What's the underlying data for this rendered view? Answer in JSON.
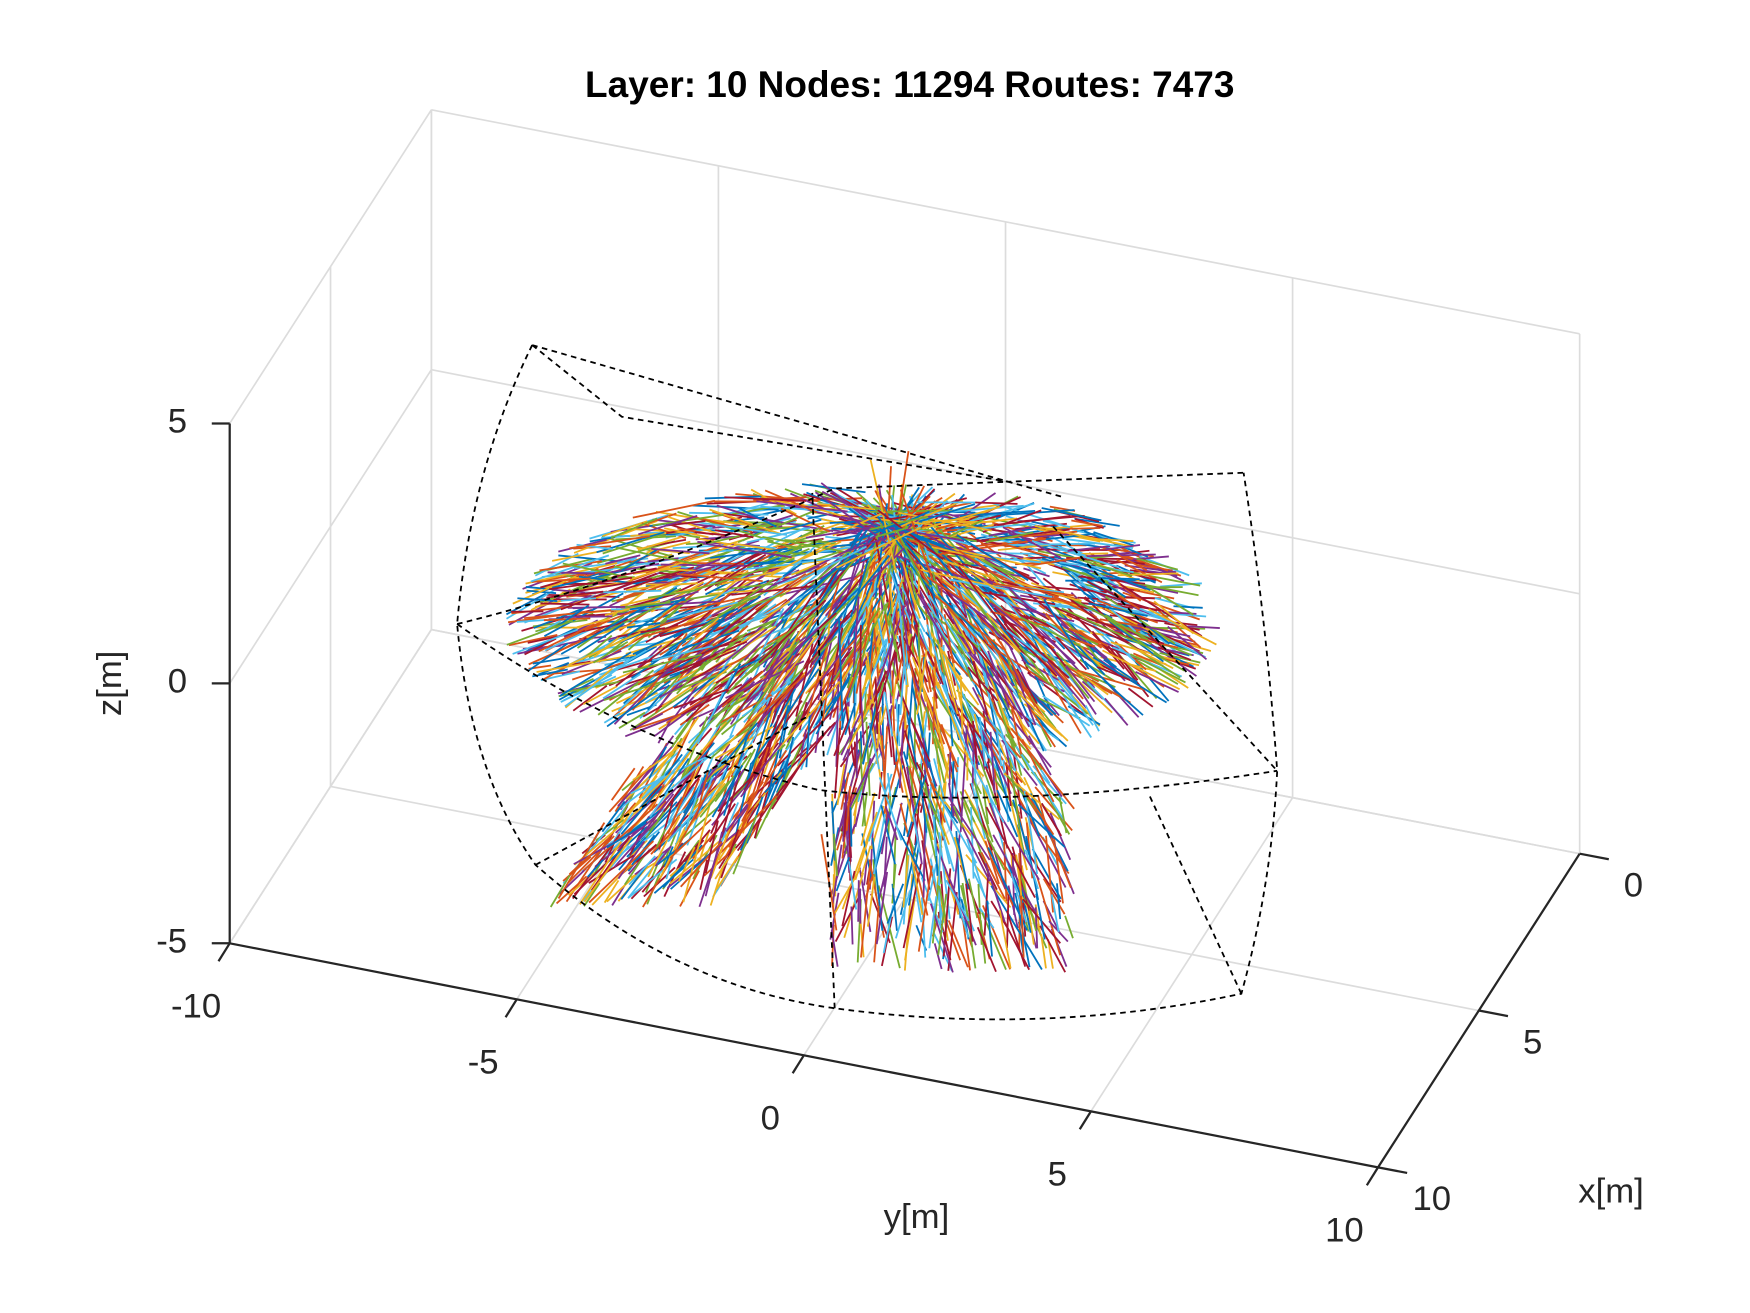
{
  "chart_data": {
    "type": "line3d",
    "title": "Layer: 10 Nodes: 11294 Routes: 7473",
    "xlabel": "x[m]",
    "ylabel": "y[m]",
    "zlabel": "z[m]",
    "xlim": [
      0,
      10
    ],
    "ylim": [
      -10,
      10
    ],
    "zlim": [
      -5,
      5
    ],
    "xticks": [
      0,
      5,
      10
    ],
    "yticks": [
      -10,
      -5,
      0,
      5,
      10
    ],
    "zticks": [
      -5,
      0,
      5
    ],
    "grid": true,
    "colors": [
      "#0072BD",
      "#D95319",
      "#EDB120",
      "#7E2F8E",
      "#77AC30",
      "#4DBEEE",
      "#A2142F"
    ]
  }
}
